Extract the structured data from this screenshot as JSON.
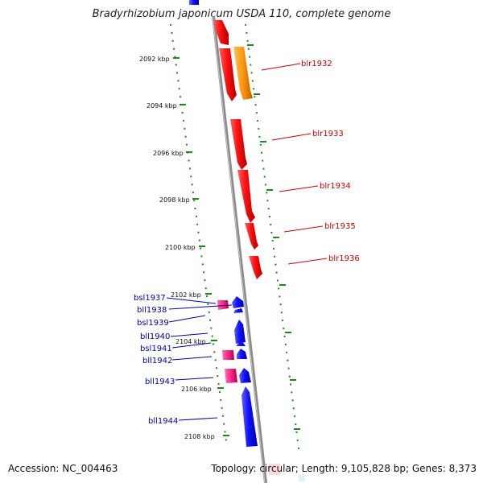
{
  "header": {
    "title": "Bradyrhizobium japonicum USDA 110, complete genome"
  },
  "footer": {
    "accession": "Accession: NC_004463",
    "summary": "Topology: circular; Length: 9,105,828 bp; Genes: 8,373"
  },
  "map": {
    "tick_labels": [
      "2092 kbp",
      "2094 kbp",
      "2096 kbp",
      "2098 kbp",
      "2100 kbp",
      "2102 kbp",
      "2104 kbp",
      "2106 kbp",
      "2108 kbp"
    ],
    "colors": {
      "backbone": "#8a8a8a",
      "tick_dots": "#1a8a1a",
      "forward_gene": "#ee0000",
      "forward_gene_alt": "#ff8c00",
      "reverse_gene": "#0000ee",
      "reverse_gene_alt": "#ee1177",
      "forward_label": "#cc0000",
      "reverse_label": "#0000aa"
    },
    "forward_genes": [
      {
        "label": "blr1932"
      },
      {
        "label": "blr1933"
      },
      {
        "label": "blr1934"
      },
      {
        "label": "blr1935"
      },
      {
        "label": "blr1936"
      }
    ],
    "reverse_genes": [
      {
        "label": "bsl1937"
      },
      {
        "label": "bll1938"
      },
      {
        "label": "bsl1939"
      },
      {
        "label": "bll1940"
      },
      {
        "label": "bsl1941"
      },
      {
        "label": "bll1942"
      },
      {
        "label": "bll1943"
      },
      {
        "label": "bll1944"
      }
    ]
  }
}
